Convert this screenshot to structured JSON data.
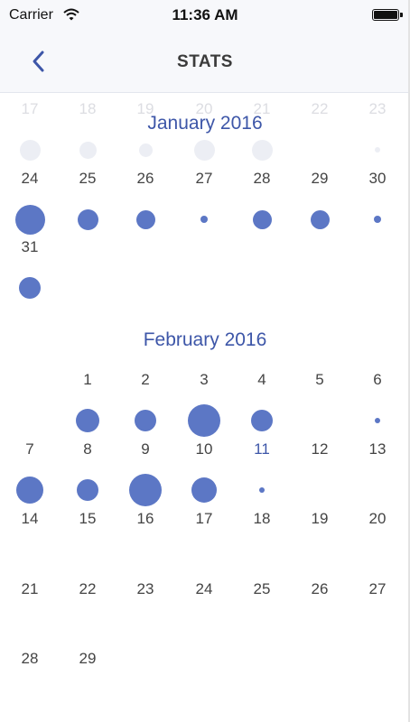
{
  "status_bar": {
    "carrier": "Carrier",
    "time": "11:36 AM"
  },
  "nav": {
    "title": "STATS",
    "back_icon": "chevron-left-icon"
  },
  "colors": {
    "accent": "#3d56a8",
    "dot": "#5c77c5",
    "faded_dot": "#eceef4"
  },
  "months": [
    {
      "title": "January 2016",
      "prev_week": [
        {
          "day": "17",
          "dot": 0.55
        },
        {
          "day": "18",
          "dot": 0.45
        },
        {
          "day": "19",
          "dot": 0.35
        },
        {
          "day": "20",
          "dot": 0.55
        },
        {
          "day": "21",
          "dot": 0.55
        },
        {
          "day": "22",
          "dot": 0
        },
        {
          "day": "23",
          "dot": 0.12
        }
      ],
      "weeks": [
        [
          {
            "day": "24",
            "dot": 0.78
          },
          {
            "day": "25",
            "dot": 0.55
          },
          {
            "day": "26",
            "dot": 0.5
          },
          {
            "day": "27",
            "dot": 0.2
          },
          {
            "day": "28",
            "dot": 0.5
          },
          {
            "day": "29",
            "dot": 0.5
          },
          {
            "day": "30",
            "dot": 0.2
          }
        ],
        [
          {
            "day": "31",
            "dot": 0.58
          },
          null,
          null,
          null,
          null,
          null,
          null
        ]
      ]
    },
    {
      "title": "February 2016",
      "weeks": [
        [
          null,
          {
            "day": "1",
            "dot": 0.62
          },
          {
            "day": "2",
            "dot": 0.56
          },
          {
            "day": "3",
            "dot": 0.85
          },
          {
            "day": "4",
            "dot": 0.56
          },
          {
            "day": "5",
            "dot": 0
          },
          {
            "day": "6",
            "dot": 0.12
          }
        ],
        [
          {
            "day": "7",
            "dot": 0.72
          },
          {
            "day": "8",
            "dot": 0.56
          },
          {
            "day": "9",
            "dot": 0.85
          },
          {
            "day": "10",
            "dot": 0.66
          },
          {
            "day": "11",
            "dot": 0.12,
            "today": true
          },
          {
            "day": "12",
            "dot": 0
          },
          {
            "day": "13",
            "dot": 0
          }
        ],
        [
          {
            "day": "14"
          },
          {
            "day": "15"
          },
          {
            "day": "16"
          },
          {
            "day": "17"
          },
          {
            "day": "18"
          },
          {
            "day": "19"
          },
          {
            "day": "20"
          }
        ],
        [
          {
            "day": "21"
          },
          {
            "day": "22"
          },
          {
            "day": "23"
          },
          {
            "day": "24"
          },
          {
            "day": "25"
          },
          {
            "day": "26"
          },
          {
            "day": "27"
          }
        ],
        [
          {
            "day": "28"
          },
          {
            "day": "29"
          },
          null,
          null,
          null,
          null,
          null
        ]
      ]
    }
  ]
}
